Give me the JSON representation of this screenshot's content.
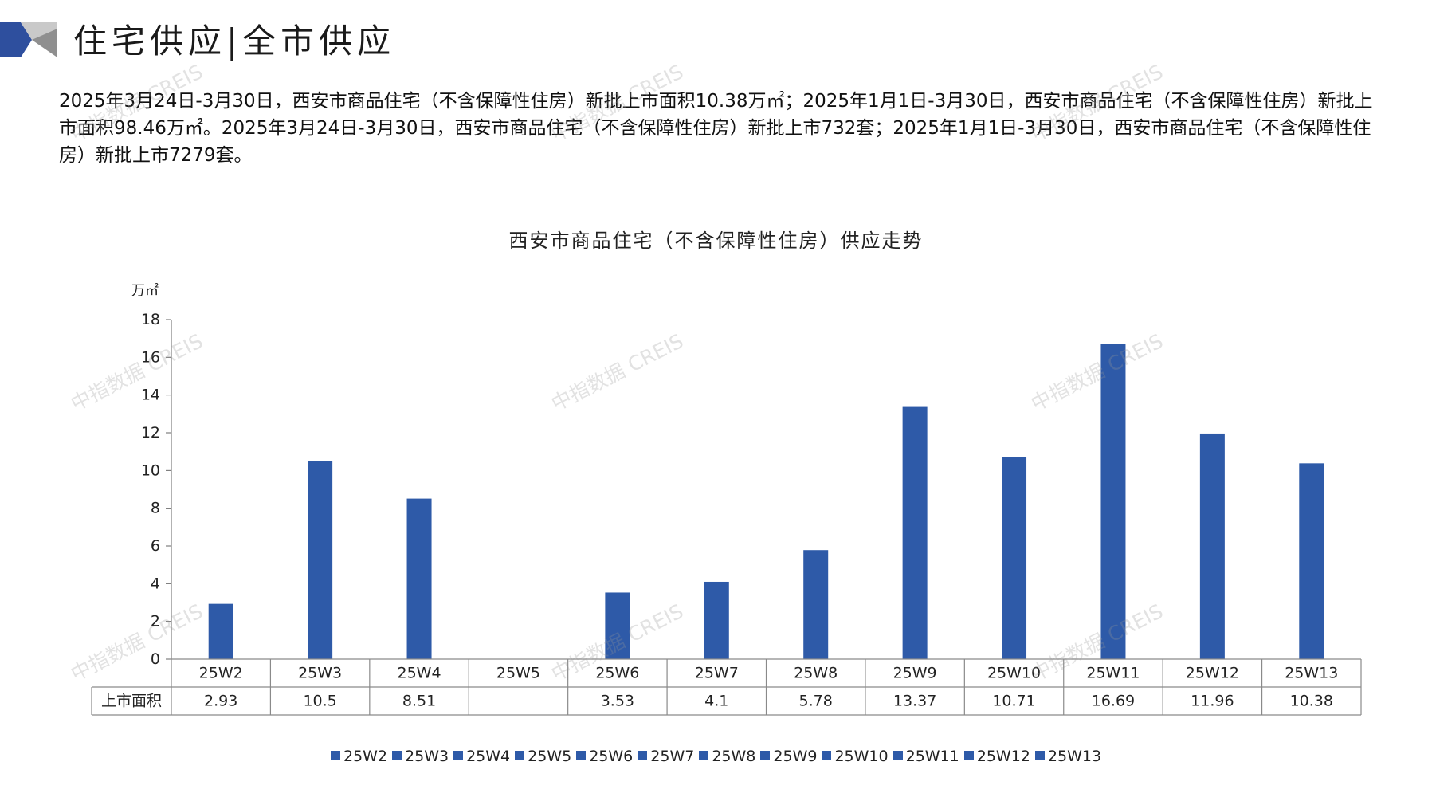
{
  "header": {
    "title": "住宅供应|全市供应"
  },
  "summary": "2025年3月24日-3月30日，西安市商品住宅（不含保障性住房）新批上市面积10.38万㎡；2025年1月1日-3月30日，西安市商品住宅（不含保障性住房）新批上市面积98.46万㎡。2025年3月24日-3月30日，西安市商品住宅（不含保障性住房）新批上市732套；2025年1月1日-3月30日，西安市商品住宅（不含保障性住房）新批上市7279套。",
  "watermark": "中指数据 CREIS",
  "colors": {
    "bar": "#2e5aa8",
    "accent": "#2e4f9e"
  },
  "chart_data": {
    "type": "bar",
    "title": "西安市商品住宅（不含保障性住房）供应走势",
    "ylabel": "万㎡",
    "ylim": [
      0,
      18
    ],
    "yticks": [
      0,
      2,
      4,
      6,
      8,
      10,
      12,
      14,
      16,
      18
    ],
    "categories": [
      "25W2",
      "25W3",
      "25W4",
      "25W5",
      "25W6",
      "25W7",
      "25W8",
      "25W9",
      "25W10",
      "25W11",
      "25W12",
      "25W13"
    ],
    "series": [
      {
        "name": "上市面积",
        "values": [
          2.93,
          10.5,
          8.51,
          null,
          3.53,
          4.1,
          5.78,
          13.37,
          10.71,
          16.69,
          11.96,
          10.38
        ],
        "labels": [
          "2.93",
          "10.5",
          "8.51",
          "",
          "3.53",
          "4.1",
          "5.78",
          "13.37",
          "10.71",
          "16.69",
          "11.96",
          "10.38"
        ]
      }
    ],
    "legend": [
      "25W2",
      "25W3",
      "25W4",
      "25W5",
      "25W6",
      "25W7",
      "25W8",
      "25W9",
      "25W10",
      "25W11",
      "25W12",
      "25W13"
    ],
    "legend_position": "bottom",
    "grid": false,
    "data_table": true
  }
}
